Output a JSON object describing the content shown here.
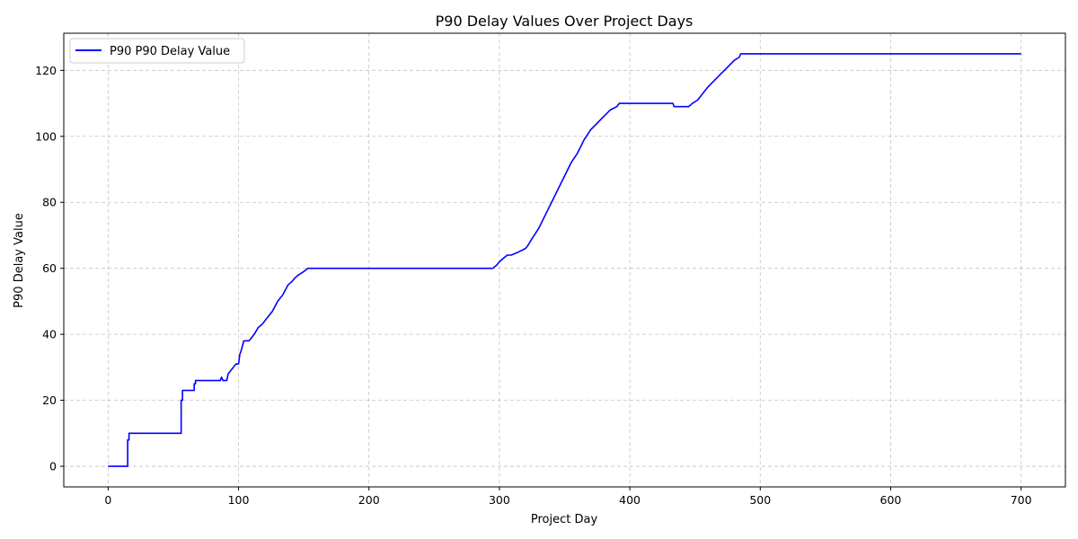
{
  "chart_data": {
    "type": "line",
    "title": "P90 Delay Values Over Project Days",
    "xlabel": "Project Day",
    "ylabel": "P90 Delay Value",
    "xlim": [
      -34,
      734
    ],
    "ylim": [
      -6.25,
      131.25
    ],
    "xticks": [
      0,
      100,
      200,
      300,
      400,
      500,
      600,
      700
    ],
    "yticks": [
      0,
      20,
      40,
      60,
      80,
      100,
      120
    ],
    "grid": true,
    "legend_position": "top-left",
    "colors": {
      "line": "#0000ff"
    },
    "series": [
      {
        "name": "P90 P90 Delay Value",
        "x": [
          0,
          15,
          15,
          16,
          16,
          56,
          56,
          57,
          57,
          66,
          66,
          67,
          67,
          86,
          87,
          88,
          89,
          91,
          92,
          94,
          96,
          98,
          100,
          101,
          102,
          104,
          106,
          108,
          112,
          115,
          118,
          122,
          126,
          130,
          134,
          138,
          141,
          143,
          146,
          150,
          153,
          156,
          160,
          200,
          250,
          295,
          298,
          300,
          303,
          306,
          309,
          315,
          320,
          322,
          325,
          330,
          335,
          340,
          345,
          350,
          355,
          360,
          365,
          370,
          375,
          380,
          385,
          390,
          392,
          400,
          420,
          433,
          434,
          445,
          448,
          452,
          456,
          460,
          465,
          470,
          475,
          480,
          484,
          485,
          500,
          600,
          700
        ],
        "y": [
          0,
          0,
          8,
          8,
          10,
          10,
          20,
          20,
          23,
          23,
          25,
          25,
          26,
          26,
          27,
          26,
          26,
          26,
          28,
          29,
          30,
          31,
          31,
          34,
          35,
          38,
          38,
          38,
          40,
          42,
          43,
          45,
          47,
          50,
          52,
          55,
          56,
          57,
          58,
          59,
          60,
          60,
          60,
          60,
          60,
          60,
          61,
          62,
          63,
          64,
          64,
          65,
          66,
          67,
          69,
          72,
          76,
          80,
          84,
          88,
          92,
          95,
          99,
          102,
          104,
          106,
          108,
          109,
          110,
          110,
          110,
          110,
          109,
          109,
          110,
          111,
          113,
          115,
          117,
          119,
          121,
          123,
          124,
          125,
          125,
          125,
          125
        ]
      }
    ]
  }
}
